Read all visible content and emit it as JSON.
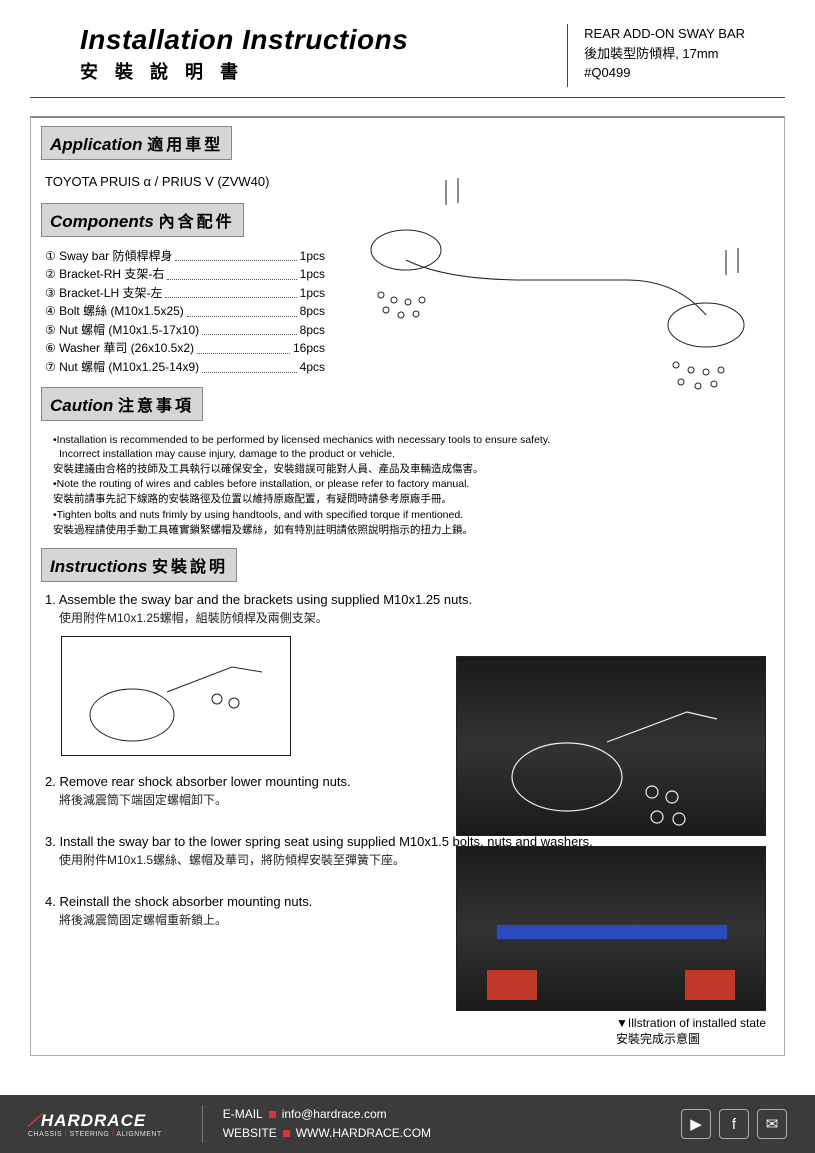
{
  "header": {
    "title_en": "Installation Instructions",
    "title_zh": "安 裝 說 明 書",
    "product_line1": "REAR ADD-ON SWAY BAR",
    "product_line2": "後加裝型防傾桿, 17mm",
    "product_line3": "#Q0499"
  },
  "sections": {
    "application": {
      "label_en": "Application",
      "label_zh": "適用車型",
      "text": "TOYOTA PRUIS α / PRIUS V (ZVW40)"
    },
    "components": {
      "label_en": "Components",
      "label_zh": "內含配件"
    },
    "caution": {
      "label_en": "Caution",
      "label_zh": "注意事項"
    },
    "instructions": {
      "label_en": "Instructions",
      "label_zh": "安裝說明"
    }
  },
  "components_list": [
    {
      "n": "①",
      "label": "Sway bar 防傾桿桿身",
      "qty": "1pcs"
    },
    {
      "n": "②",
      "label": "Bracket-RH 支架-右",
      "qty": "1pcs"
    },
    {
      "n": "③",
      "label": "Bracket-LH 支架-左",
      "qty": "1pcs"
    },
    {
      "n": "④",
      "label": "Bolt 螺絲 (M10x1.5x25)",
      "qty": "8pcs"
    },
    {
      "n": "⑤",
      "label": "Nut 螺帽 (M10x1.5-17x10)",
      "qty": "8pcs"
    },
    {
      "n": "⑥",
      "label": "Washer 華司 (26x10.5x2)",
      "qty": "16pcs"
    },
    {
      "n": "⑦",
      "label": "Nut 螺帽 (M10x1.25-14x9)",
      "qty": "4pcs"
    }
  ],
  "caution_lines": [
    "•Installation is recommended to be performed by licensed mechanics with necessary tools to ensure safety. Incorrect installation may cause injury, damage to the product or vehicle.",
    "安裝建議由合格的技師及工具執行以確保安全，安裝錯誤可能對人員、產品及車輛造成傷害。",
    "•Note the routing of wires and cables before installation, or please refer to factory manual.",
    "安裝前請事先記下線路的安裝路徑及位置以維持原廠配置，有疑問時請參考原廠手冊。",
    "•Tighten bolts and nuts frimly by using handtools, and with specified torque if mentioned.",
    "安裝過程請使用手動工具確實鎖緊螺帽及螺絲，如有特別註明請依照說明指示的扭力上鎖。"
  ],
  "steps": [
    {
      "num": "1.",
      "en": "Assemble the sway bar and the brackets using supplied M10x1.25 nuts.",
      "zh": "使用附件M10x1.25螺帽，組裝防傾桿及兩側支架。",
      "has_diagram": true
    },
    {
      "num": "2.",
      "en": "Remove rear shock absorber lower mounting nuts.",
      "zh": "將後減震筒下端固定螺帽卸下。"
    },
    {
      "num": "3.",
      "en": "Install the sway bar to the lower spring seat using supplied M10x1.5 bolts, nuts and washers.",
      "zh": "使用附件M10x1.5螺絲、螺帽及華司，將防傾桿安裝至彈簧下座。"
    },
    {
      "num": "4.",
      "en": "Reinstall the shock absorber mounting nuts.",
      "zh": "將後減震筒固定螺帽重新鎖上。"
    }
  ],
  "photo_caption": {
    "line1": "▼Illstration of installed state",
    "line2": "安裝完成示意圖"
  },
  "footer": {
    "brand": "HARDRACE",
    "tagline_parts": [
      "CHASSIS",
      "STEERING",
      "ALIGNMENT"
    ],
    "email_label": "E-MAIL",
    "email": "info@hardrace.com",
    "website_label": "WEBSITE",
    "website": "WWW.HARDRACE.COM",
    "icons": [
      "youtube",
      "facebook",
      "wechat"
    ]
  },
  "colors": {
    "header_gray": "#d6d6d6",
    "footer_bg": "#3b3b3b",
    "accent_red": "#e03030",
    "accent_blue": "#2b4bbf"
  }
}
